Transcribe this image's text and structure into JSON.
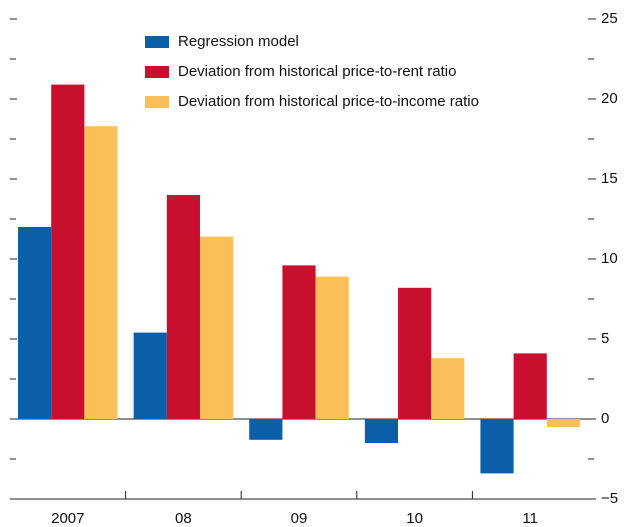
{
  "chart_data": {
    "type": "bar",
    "categories": [
      "2007",
      "08",
      "09",
      "10",
      "11"
    ],
    "series": [
      {
        "name": "Regression model",
        "color": "#0a5fa8",
        "values": [
          12.0,
          5.4,
          -1.3,
          -1.5,
          -3.4
        ]
      },
      {
        "name": "Deviation from historical price-to-rent ratio",
        "color": "#c8102e",
        "values": [
          20.9,
          14.0,
          9.6,
          8.2,
          4.1
        ]
      },
      {
        "name": "Deviation from historical price-to-income ratio",
        "color": "#fbbf5a",
        "values": [
          18.3,
          11.4,
          8.9,
          3.8,
          -0.5
        ]
      }
    ],
    "ylim": [
      -5,
      25
    ],
    "yticks": [
      {
        "value": -5,
        "label": "−5"
      },
      0,
      5,
      10,
      15,
      20,
      25
    ],
    "minor_yticks": [
      -2.5,
      2.5,
      7.5,
      12.5,
      17.5,
      22.5
    ],
    "y_axis_side": "right"
  }
}
